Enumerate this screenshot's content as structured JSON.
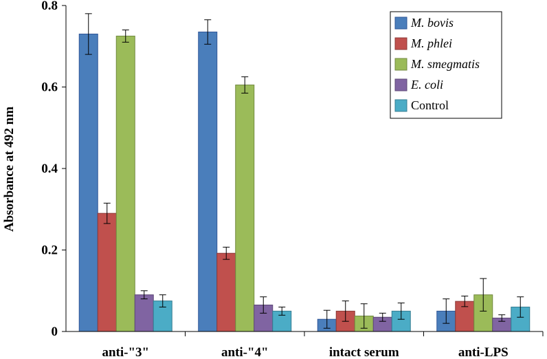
{
  "chart_data": {
    "type": "bar",
    "title": "",
    "xlabel": "",
    "ylabel": "Absorbance at 492 nm",
    "ylim": [
      0,
      0.8
    ],
    "yticks": [
      0,
      0.2,
      0.4,
      0.6,
      0.8
    ],
    "ytick_labels": [
      "0",
      "0.2",
      "0.4",
      "0.6",
      "0.8"
    ],
    "categories": [
      "anti-\"3\"",
      "anti-\"4\"",
      "intact  serum",
      "anti-LPS"
    ],
    "legend_position": "top-right",
    "grid": false,
    "series": [
      {
        "name": "M. bovis",
        "italic": true,
        "color": "#4a7ebb",
        "edge": "#2f5597",
        "values": [
          0.73,
          0.735,
          0.03,
          0.05
        ],
        "errors": [
          0.05,
          0.03,
          0.022,
          0.03
        ]
      },
      {
        "name": "M. phlei",
        "italic": true,
        "color": "#c0504d",
        "edge": "#8c3836",
        "values": [
          0.29,
          0.192,
          0.05,
          0.074
        ],
        "errors": [
          0.025,
          0.015,
          0.025,
          0.013
        ]
      },
      {
        "name": "M. smegmatis",
        "italic": true,
        "color": "#9bbb59",
        "edge": "#71893f",
        "values": [
          0.725,
          0.605,
          0.038,
          0.09
        ],
        "errors": [
          0.015,
          0.02,
          0.03,
          0.04
        ]
      },
      {
        "name": "E. coli",
        "italic": true,
        "color": "#8064a2",
        "edge": "#5c4776",
        "values": [
          0.09,
          0.065,
          0.035,
          0.033
        ],
        "errors": [
          0.01,
          0.02,
          0.01,
          0.008
        ]
      },
      {
        "name": "Control",
        "italic": false,
        "color": "#4bacc6",
        "edge": "#357d91",
        "values": [
          0.075,
          0.05,
          0.05,
          0.06
        ],
        "errors": [
          0.015,
          0.01,
          0.02,
          0.025
        ]
      }
    ]
  }
}
